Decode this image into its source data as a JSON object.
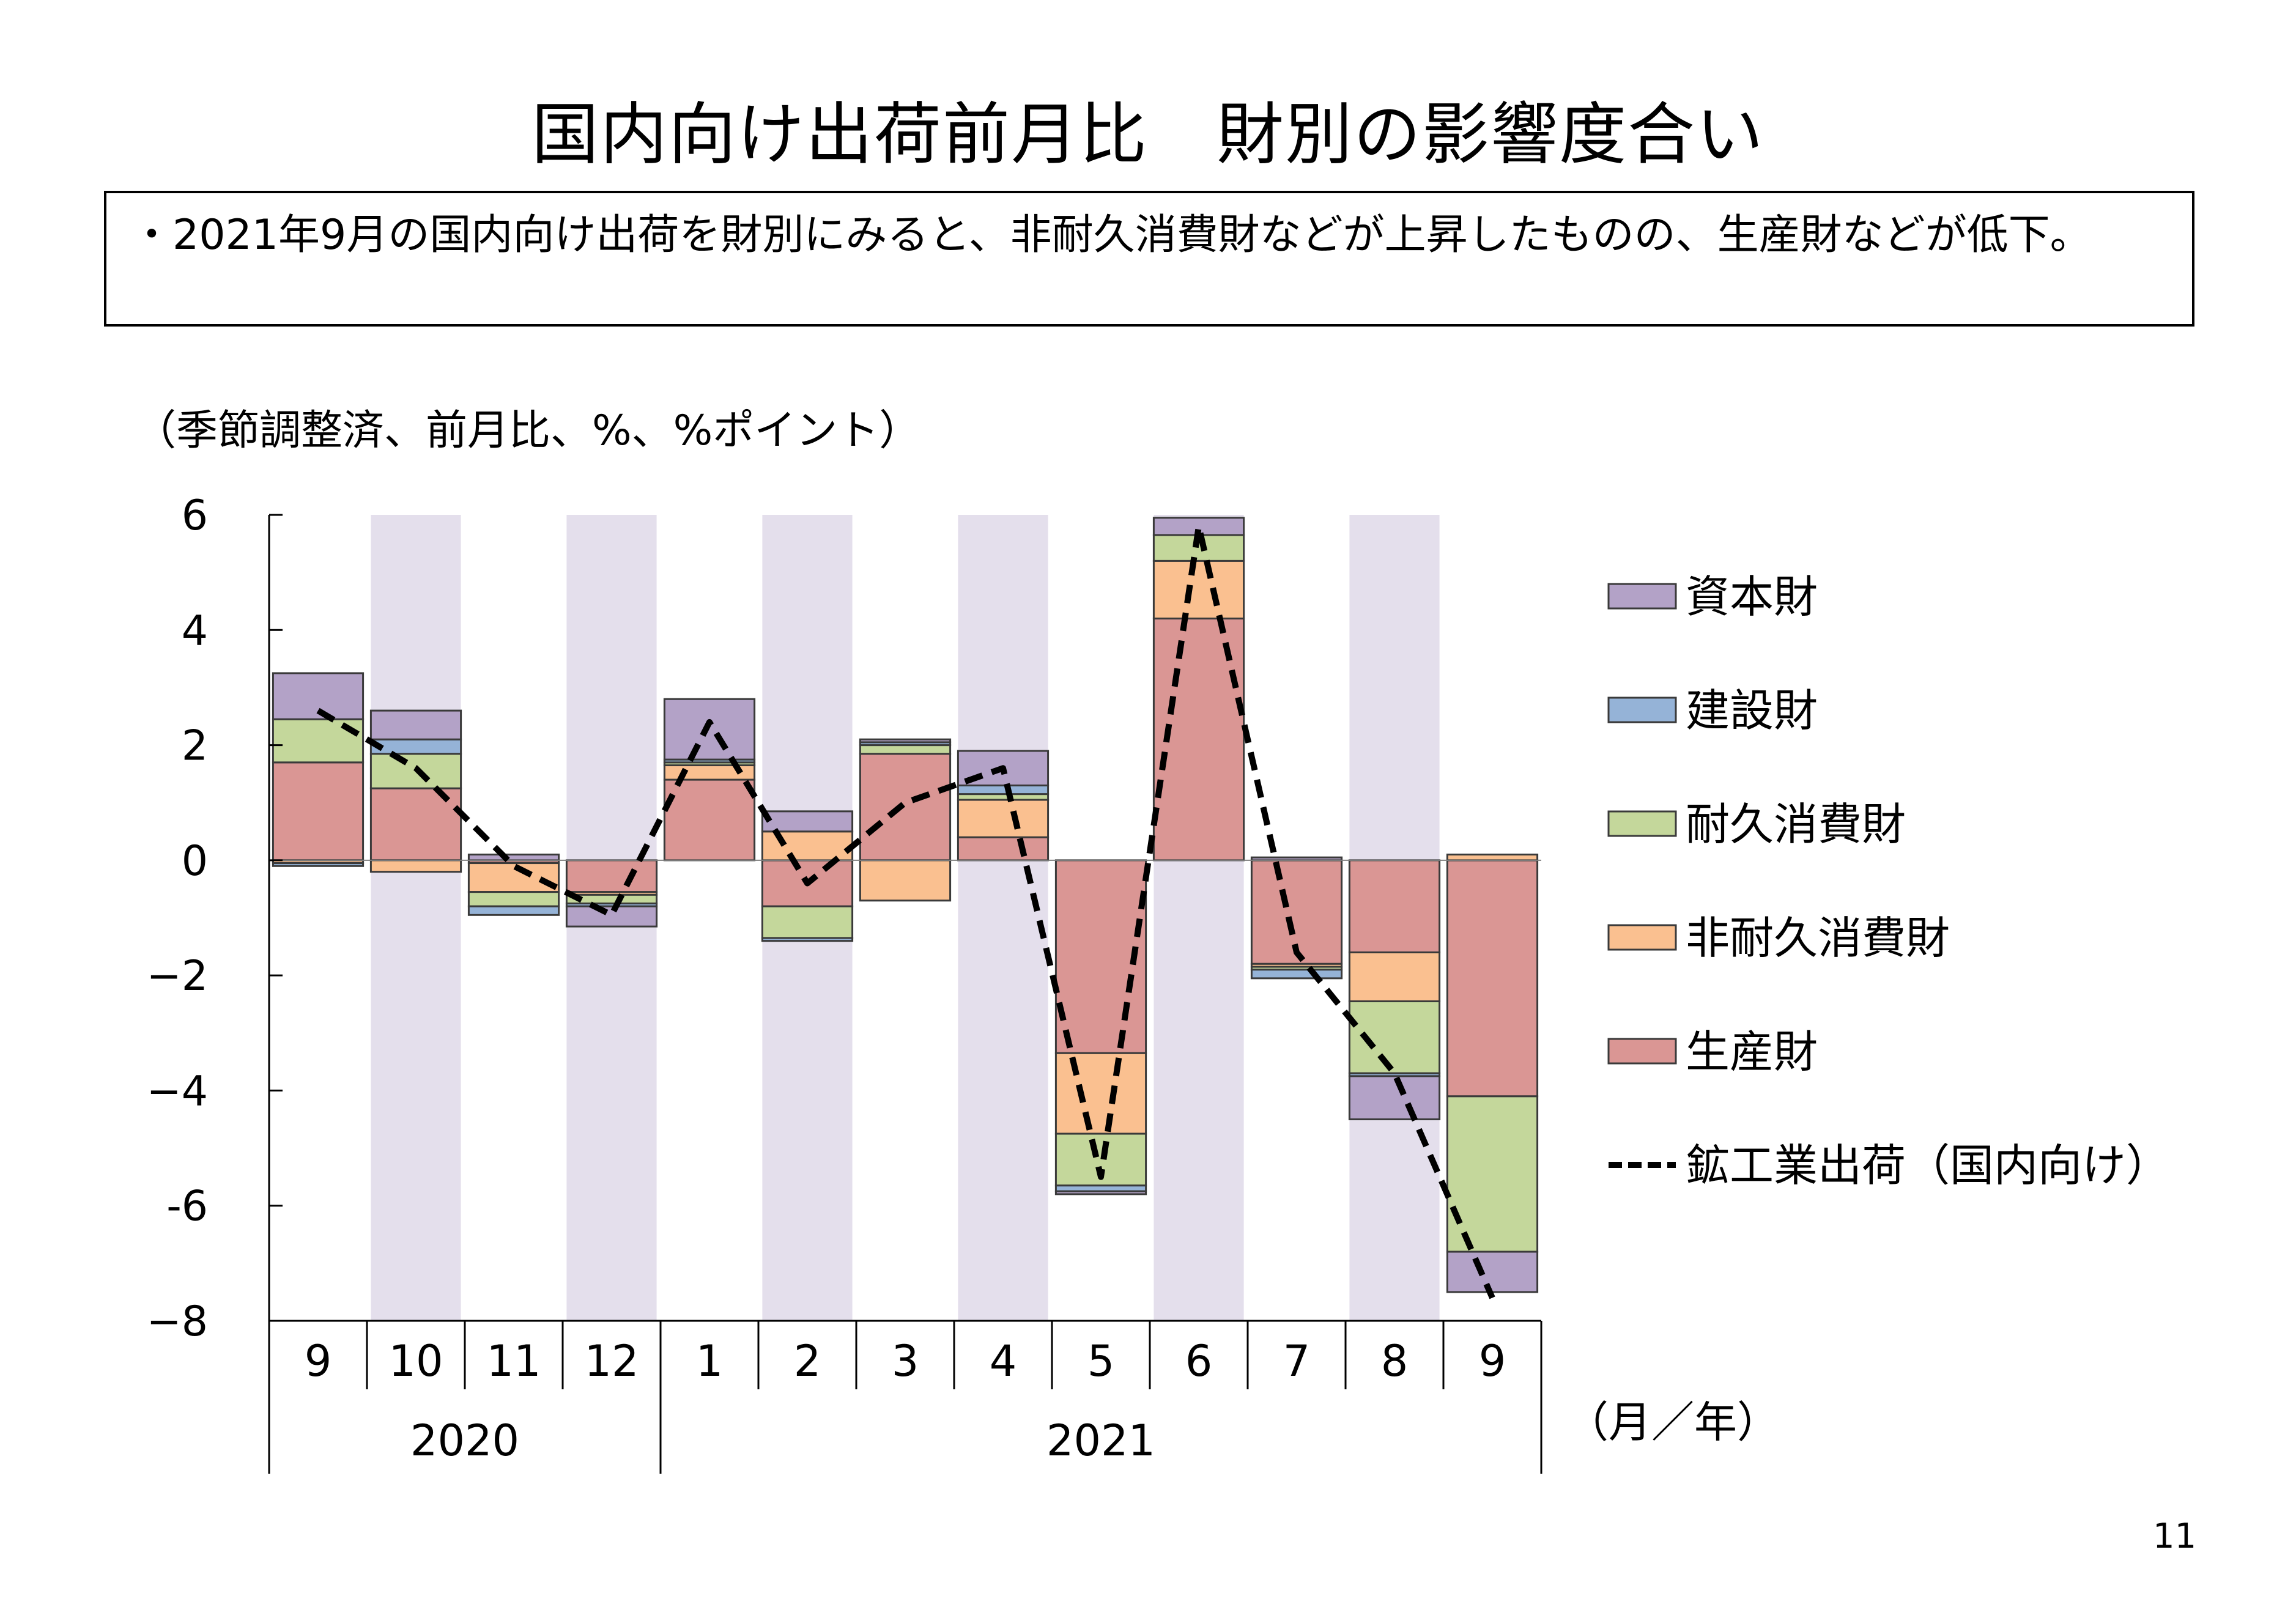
{
  "title": "国内向け出荷前月比　財別の影響度合い",
  "summary": "・2021年9月の国内向け出荷を財別にみると、非耐久消費財などが上昇したものの、生産財などが低下。",
  "unit_note": "（季節調整済、前月比、%、%ポイント）",
  "page_number": "11",
  "colors": {
    "capital_goods": "#b3a2c7",
    "construction_goods": "#95b3d7",
    "durable_consumer": "#c4d79b",
    "nondurable_consumer": "#fac090",
    "producer_goods": "#da9694",
    "shade": "#e4dfec"
  },
  "chart_data": {
    "type": "bar",
    "stacked": true,
    "categories": [
      "9",
      "10",
      "11",
      "12",
      "1",
      "2",
      "3",
      "4",
      "5",
      "6",
      "7",
      "8",
      "9"
    ],
    "years": [
      {
        "label": "2020",
        "months": 4
      },
      {
        "label": "2021",
        "months": 9
      }
    ],
    "x_unit": "（月／年）",
    "ylim": [
      -8,
      6
    ],
    "yticks": [
      6,
      4,
      2,
      0,
      -2,
      -4,
      -6,
      -8
    ],
    "ytick_labels": [
      "6",
      "4",
      "2",
      "0",
      "−2",
      "−4",
      "-6",
      "−8"
    ],
    "shaded_categories": [
      1,
      3,
      5,
      7,
      9,
      11
    ],
    "legend_position": "right",
    "series": [
      {
        "name": "生産財",
        "color": "#da9694",
        "values": [
          1.7,
          1.25,
          -0.05,
          -0.55,
          1.4,
          -0.8,
          1.85,
          0.4,
          -3.35,
          4.2,
          -1.8,
          -1.6,
          -4.1
        ]
      },
      {
        "name": "非耐久消費財",
        "color": "#fac090",
        "values": [
          -0.05,
          -0.2,
          -0.5,
          -0.05,
          0.25,
          0.5,
          -0.7,
          0.65,
          -1.4,
          1.0,
          -0.05,
          -0.85,
          0.1
        ]
      },
      {
        "name": "耐久消費財",
        "color": "#c4d79b",
        "values": [
          0.75,
          0.6,
          -0.25,
          -0.15,
          0.05,
          -0.55,
          0.15,
          0.1,
          -0.9,
          0.45,
          -0.05,
          -1.25,
          -2.7
        ]
      },
      {
        "name": "建設財",
        "color": "#95b3d7",
        "values": [
          -0.05,
          0.25,
          -0.15,
          -0.05,
          0.05,
          -0.05,
          0.05,
          0.15,
          -0.1,
          0.0,
          -0.15,
          -0.05,
          0.0
        ]
      },
      {
        "name": "資本財",
        "color": "#b3a2c7",
        "values": [
          0.8,
          0.5,
          0.1,
          -0.35,
          1.05,
          0.35,
          0.05,
          0.6,
          -0.05,
          0.3,
          0.05,
          -0.75,
          -0.7
        ]
      }
    ],
    "line": {
      "name": "鉱工業出荷（国内向け）",
      "values": [
        2.6,
        1.6,
        -0.1,
        -0.95,
        2.4,
        -0.4,
        1.0,
        1.6,
        -5.5,
        5.8,
        -1.6,
        -3.7,
        -7.6
      ]
    },
    "legend_order": [
      "資本財",
      "建設財",
      "耐久消費財",
      "非耐久消費財",
      "生産財",
      "鉱工業出荷（国内向け）"
    ]
  }
}
